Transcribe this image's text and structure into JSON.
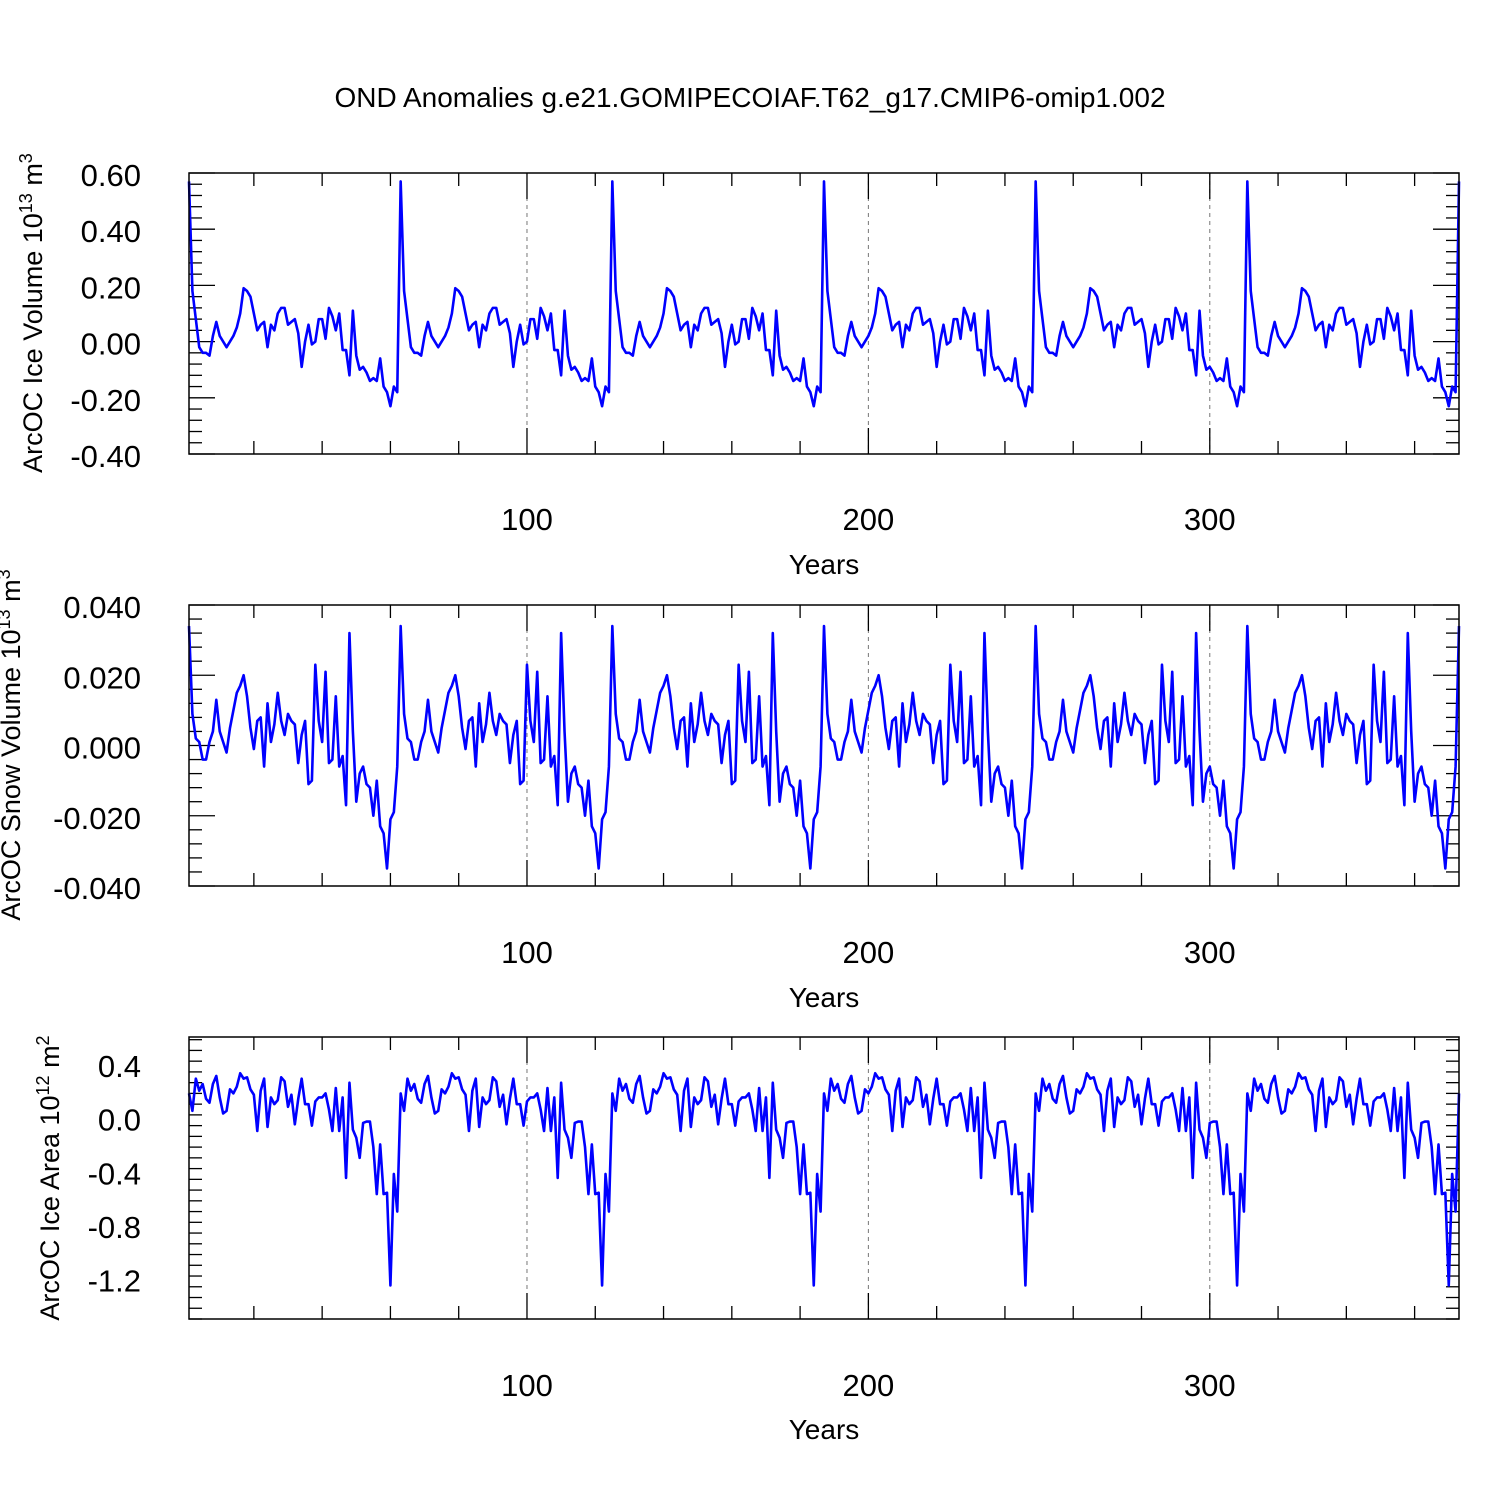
{
  "title": "OND Anomalies g.e21.GOMIPECOIAF.T62_g17.CMIP6-omip1.002",
  "line_color": "#0000ff",
  "chart_data": [
    {
      "type": "line",
      "ylabel_main": "ArcOC Ice Volume 10",
      "ylabel_exp": "13",
      "ylabel_unit": " m",
      "ylabel_unit_exp": "3",
      "xlabel": "Years",
      "xlim": [
        1,
        373
      ],
      "ylim": [
        -0.4,
        0.6
      ],
      "yticks": [
        -0.4,
        -0.2,
        0.0,
        0.2,
        0.4,
        0.6
      ],
      "ytick_labels": [
        "-0.40",
        "-0.20",
        "0.00",
        "0.20",
        "0.40",
        "0.60"
      ],
      "xticks": [
        100,
        200,
        300
      ],
      "xtick_labels": [
        "100",
        "200",
        "300"
      ],
      "cycle_length": 62,
      "cycle_values": [
        0.57,
        0.18,
        0.08,
        -0.02,
        -0.04,
        -0.04,
        -0.05,
        0.02,
        0.07,
        0.02,
        0.0,
        -0.02,
        0.0,
        0.02,
        0.05,
        0.1,
        0.19,
        0.18,
        0.16,
        0.1,
        0.04,
        0.06,
        0.07,
        -0.02,
        0.06,
        0.04,
        0.1,
        0.12,
        0.12,
        0.06,
        0.07,
        0.08,
        0.03,
        -0.09,
        0.0,
        0.06,
        -0.01,
        0.0,
        0.08,
        0.08,
        0.01,
        0.12,
        0.09,
        0.04,
        0.1,
        -0.03,
        -0.03,
        -0.12,
        0.11,
        -0.05,
        -0.1,
        -0.09,
        -0.11,
        -0.14,
        -0.13,
        -0.14,
        -0.06,
        -0.16,
        -0.18,
        -0.23,
        -0.16,
        -0.18
      ],
      "cycle_start": [
        0.57,
        0.18,
        0.08,
        -0.02,
        -0.04,
        -0.04,
        -0.05,
        0.02,
        0.07,
        0.02
      ]
    },
    {
      "type": "line",
      "ylabel_main": "ArcOC Snow Volume 10",
      "ylabel_exp": "13",
      "ylabel_unit": " m",
      "ylabel_unit_exp": "3",
      "xlabel": "Years",
      "xlim": [
        1,
        373
      ],
      "ylim": [
        -0.04,
        0.04
      ],
      "yticks": [
        -0.04,
        -0.02,
        0.0,
        0.02,
        0.04
      ],
      "ytick_labels": [
        "-0.040",
        "-0.020",
        "0.000",
        "0.020",
        "0.040"
      ],
      "xticks": [
        100,
        200,
        300
      ],
      "xtick_labels": [
        "100",
        "200",
        "300"
      ],
      "cycle_length": 62,
      "cycle_values": [
        0.034,
        0.009,
        0.002,
        0.001,
        -0.004,
        -0.004,
        0.001,
        0.004,
        0.013,
        0.004,
        0.001,
        -0.002,
        0.005,
        0.01,
        0.015,
        0.017,
        0.02,
        0.014,
        0.005,
        -0.001,
        0.007,
        0.008,
        -0.006,
        0.012,
        0.001,
        0.006,
        0.015,
        0.007,
        0.003,
        0.009,
        0.007,
        0.006,
        -0.005,
        0.003,
        0.007,
        -0.011,
        -0.01,
        0.023,
        0.007,
        0.001,
        0.021,
        -0.005,
        -0.004,
        0.014,
        -0.006,
        -0.003,
        -0.017,
        0.032,
        0.004,
        -0.016,
        -0.008,
        -0.006,
        -0.011,
        -0.012,
        -0.02,
        -0.01,
        -0.023,
        -0.025,
        -0.035,
        -0.021,
        -0.019,
        -0.006
      ],
      "cycle_start": [
        0.034,
        0.009,
        0.002,
        0.001,
        -0.004,
        -0.004,
        0.001,
        0.004,
        0.013,
        0.004
      ]
    },
    {
      "type": "line",
      "ylabel_main": "ArcOC Ice Area 10",
      "ylabel_exp": "12",
      "ylabel_unit": " m",
      "ylabel_unit_exp": "2",
      "xlabel": "Years",
      "xlim": [
        1,
        373
      ],
      "ylim": [
        -1.5,
        0.6
      ],
      "yticks": [
        -1.2,
        -0.8,
        -0.4,
        0.0,
        0.4
      ],
      "ytick_labels": [
        "-1.2",
        "-0.8",
        "-0.4",
        "0.0",
        "0.4"
      ],
      "xticks": [
        100,
        200,
        300
      ],
      "xtick_labels": [
        "100",
        "200",
        "300"
      ],
      "cycle_length": 62,
      "cycle_values": [
        0.18,
        0.05,
        0.29,
        0.2,
        0.25,
        0.14,
        0.11,
        0.25,
        0.31,
        0.15,
        0.03,
        0.05,
        0.21,
        0.18,
        0.23,
        0.33,
        0.29,
        0.3,
        0.21,
        0.17,
        -0.1,
        0.2,
        0.29,
        -0.07,
        0.15,
        0.1,
        0.13,
        0.3,
        0.27,
        0.08,
        0.17,
        -0.05,
        0.14,
        0.29,
        0.1,
        0.1,
        -0.06,
        0.12,
        0.15,
        0.15,
        0.18,
        0.06,
        -0.1,
        0.22,
        -0.1,
        0.15,
        -0.45,
        0.26,
        -0.09,
        -0.15,
        -0.3,
        -0.04,
        -0.03,
        -0.03,
        -0.22,
        -0.57,
        -0.2,
        -0.57,
        -0.56,
        -1.25,
        -0.42,
        -0.7
      ],
      "cycle_start": [
        0.18,
        0.05,
        0.29,
        0.2,
        0.25,
        0.14,
        0.11,
        0.25,
        0.31,
        0.15
      ]
    }
  ]
}
